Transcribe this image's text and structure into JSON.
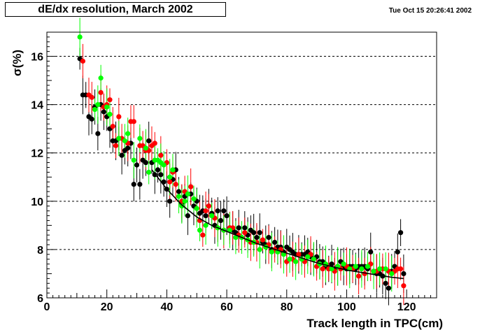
{
  "header": {
    "title": "dE/dx resolution, March 2002",
    "timestamp": "Tue Oct 15 20:26:41 2002"
  },
  "chart_data": {
    "type": "scatter",
    "title": "dE/dx resolution, March 2002",
    "xlabel": "Track length in TPC(cm)",
    "ylabel": "σ(%)",
    "xlim": [
      0,
      130
    ],
    "ylim": [
      6,
      17
    ],
    "x_ticks": [
      0,
      20,
      40,
      60,
      80,
      100,
      120
    ],
    "y_ticks": [
      6,
      8,
      10,
      12,
      14,
      16
    ],
    "grid": "horizontal dashed at y ticks",
    "series": [
      {
        "color": "#000000",
        "points": [
          [
            11,
            15.9
          ],
          [
            12,
            14.4
          ],
          [
            13,
            14.4
          ],
          [
            14,
            13.5
          ],
          [
            15,
            13.4
          ],
          [
            16,
            13.9
          ],
          [
            17,
            12.8
          ],
          [
            18,
            14.0
          ],
          [
            19,
            13.7
          ],
          [
            20,
            13.5
          ],
          [
            21,
            13.0
          ],
          [
            22,
            12.5
          ],
          [
            23,
            12.5
          ],
          [
            24,
            12.6
          ],
          [
            25,
            11.9
          ],
          [
            26,
            12.1
          ],
          [
            27,
            12.2
          ],
          [
            28,
            12.4
          ],
          [
            29,
            10.7
          ],
          [
            30,
            11.5
          ],
          [
            31,
            10.7
          ],
          [
            32,
            11.7
          ],
          [
            33,
            11.6
          ],
          [
            34,
            12.5
          ],
          [
            35,
            11.6
          ],
          [
            36,
            11.1
          ],
          [
            37,
            11.3
          ],
          [
            38,
            11.1
          ],
          [
            39,
            10.8
          ],
          [
            40,
            10.5
          ],
          [
            41,
            10.0
          ],
          [
            42,
            10.9
          ],
          [
            43,
            11.3
          ],
          [
            44,
            10.4
          ],
          [
            45,
            9.9
          ],
          [
            46,
            10.2
          ],
          [
            47,
            9.4
          ],
          [
            48,
            10.3
          ],
          [
            49,
            9.8
          ],
          [
            50,
            10.0
          ],
          [
            51,
            9.5
          ],
          [
            52,
            9.6
          ],
          [
            53,
            9.4
          ],
          [
            54,
            9.8
          ],
          [
            55,
            9.5
          ],
          [
            56,
            9.0
          ],
          [
            57,
            9.6
          ],
          [
            58,
            9.2
          ],
          [
            59,
            9.6
          ],
          [
            60,
            9.4
          ],
          [
            61,
            8.9
          ],
          [
            62,
            8.8
          ],
          [
            63,
            8.7
          ],
          [
            64,
            8.9
          ],
          [
            65,
            8.5
          ],
          [
            66,
            8.9
          ],
          [
            67,
            8.6
          ],
          [
            68,
            8.8
          ],
          [
            69,
            8.7
          ],
          [
            70,
            8.5
          ],
          [
            71,
            8.7
          ],
          [
            72,
            8.3
          ],
          [
            73,
            8.2
          ],
          [
            74,
            8.5
          ],
          [
            75,
            8.0
          ],
          [
            76,
            8.3
          ],
          [
            77,
            8.1
          ],
          [
            78,
            8.1
          ],
          [
            79,
            7.9
          ],
          [
            80,
            8.1
          ],
          [
            81,
            8.0
          ],
          [
            82,
            7.9
          ],
          [
            83,
            7.8
          ],
          [
            84,
            7.8
          ],
          [
            85,
            7.8
          ],
          [
            86,
            7.8
          ],
          [
            87,
            7.9
          ],
          [
            88,
            7.7
          ],
          [
            89,
            7.6
          ],
          [
            90,
            7.7
          ],
          [
            91,
            7.5
          ],
          [
            92,
            7.5
          ],
          [
            93,
            7.3
          ],
          [
            94,
            7.2
          ],
          [
            95,
            7.4
          ],
          [
            96,
            7.2
          ],
          [
            97,
            7.3
          ],
          [
            98,
            7.5
          ],
          [
            99,
            7.3
          ],
          [
            100,
            7.2
          ],
          [
            101,
            7.3
          ],
          [
            102,
            7.3
          ],
          [
            103,
            7.2
          ],
          [
            104,
            7.3
          ],
          [
            105,
            7.3
          ],
          [
            106,
            7.3
          ],
          [
            107,
            7.2
          ],
          [
            108,
            7.9
          ],
          [
            109,
            7.1
          ],
          [
            110,
            7.0
          ],
          [
            111,
            7.0
          ],
          [
            112,
            6.9
          ],
          [
            113,
            6.6
          ],
          [
            114,
            6.4
          ],
          [
            115,
            7.1
          ],
          [
            116,
            7.3
          ],
          [
            117,
            7.9
          ],
          [
            118,
            8.7
          ],
          [
            119,
            7.0
          ]
        ]
      },
      {
        "color": "#ff0000",
        "points": [
          [
            12,
            15.8
          ],
          [
            14,
            14.4
          ],
          [
            15,
            14.3
          ],
          [
            18,
            14.5
          ],
          [
            19,
            13.9
          ],
          [
            20,
            14.0
          ],
          [
            21,
            14.2
          ],
          [
            22,
            13.1
          ],
          [
            23,
            12.3
          ],
          [
            24,
            13.5
          ],
          [
            25,
            12.6
          ],
          [
            27,
            12.4
          ],
          [
            28,
            13.3
          ],
          [
            29,
            13.3
          ],
          [
            31,
            12.3
          ],
          [
            32,
            12.3
          ],
          [
            33,
            12.1
          ],
          [
            34,
            12.1
          ],
          [
            35,
            12.3
          ],
          [
            36,
            12.4
          ],
          [
            38,
            11.9
          ],
          [
            40,
            11.6
          ],
          [
            41,
            10.8
          ],
          [
            42,
            11.2
          ],
          [
            43,
            10.7
          ],
          [
            45,
            10.0
          ],
          [
            46,
            10.4
          ],
          [
            48,
            10.6
          ],
          [
            50,
            9.7
          ],
          [
            51,
            9.2
          ],
          [
            52,
            8.6
          ],
          [
            53,
            9.6
          ],
          [
            54,
            9.8
          ],
          [
            56,
            9.3
          ],
          [
            57,
            8.9
          ],
          [
            59,
            8.8
          ],
          [
            61,
            8.9
          ],
          [
            62,
            8.9
          ],
          [
            64,
            8.6
          ],
          [
            66,
            8.7
          ],
          [
            68,
            8.3
          ],
          [
            69,
            8.3
          ],
          [
            70,
            8.3
          ],
          [
            72,
            8.4
          ],
          [
            74,
            8.2
          ],
          [
            76,
            8.0
          ],
          [
            78,
            8.0
          ],
          [
            80,
            7.5
          ],
          [
            82,
            7.6
          ],
          [
            84,
            7.8
          ],
          [
            86,
            7.5
          ],
          [
            88,
            7.8
          ],
          [
            90,
            7.3
          ],
          [
            92,
            7.2
          ],
          [
            94,
            7.2
          ],
          [
            96,
            7.1
          ],
          [
            98,
            7.2
          ],
          [
            100,
            7.3
          ],
          [
            102,
            7.2
          ],
          [
            104,
            6.9
          ],
          [
            106,
            7.0
          ],
          [
            108,
            7.4
          ],
          [
            110,
            7.1
          ],
          [
            112,
            7.2
          ],
          [
            114,
            7.1
          ],
          [
            116,
            7.1
          ],
          [
            117,
            7.2
          ],
          [
            118,
            7.2
          ],
          [
            119,
            6.5
          ]
        ]
      },
      {
        "color": "#00ff00",
        "points": [
          [
            11,
            16.8
          ],
          [
            16,
            13.8
          ],
          [
            17,
            14.0
          ],
          [
            18,
            15.1
          ],
          [
            20,
            13.9
          ],
          [
            21,
            13.6
          ],
          [
            24,
            12.6
          ],
          [
            26,
            12.5
          ],
          [
            27,
            12.8
          ],
          [
            29,
            11.7
          ],
          [
            31,
            12.6
          ],
          [
            33,
            12.2
          ],
          [
            34,
            11.2
          ],
          [
            36,
            11.7
          ],
          [
            37,
            11.7
          ],
          [
            38,
            11.6
          ],
          [
            39,
            11.5
          ],
          [
            41,
            11.0
          ],
          [
            42,
            11.3
          ],
          [
            44,
            10.2
          ],
          [
            45,
            9.8
          ],
          [
            46,
            10.0
          ],
          [
            47,
            10.3
          ],
          [
            49,
            10.1
          ],
          [
            50,
            9.7
          ],
          [
            51,
            8.8
          ],
          [
            53,
            9.0
          ],
          [
            55,
            9.4
          ],
          [
            57,
            8.9
          ],
          [
            59,
            8.8
          ],
          [
            61,
            8.8
          ],
          [
            63,
            8.5
          ],
          [
            65,
            8.5
          ],
          [
            67,
            8.4
          ],
          [
            69,
            8.3
          ],
          [
            71,
            8.0
          ],
          [
            73,
            8.1
          ],
          [
            75,
            7.9
          ],
          [
            77,
            7.9
          ],
          [
            79,
            7.8
          ],
          [
            81,
            7.6
          ],
          [
            83,
            7.5
          ],
          [
            85,
            7.6
          ],
          [
            87,
            7.7
          ],
          [
            89,
            7.6
          ],
          [
            91,
            7.4
          ],
          [
            93,
            7.4
          ],
          [
            95,
            7.2
          ],
          [
            97,
            7.3
          ],
          [
            99,
            7.4
          ],
          [
            101,
            7.2
          ],
          [
            103,
            7.3
          ],
          [
            105,
            7.2
          ],
          [
            107,
            7.3
          ],
          [
            109,
            7.1
          ],
          [
            111,
            7.2
          ],
          [
            113,
            7.2
          ],
          [
            115,
            7.0
          ]
        ]
      }
    ],
    "fit": {
      "color": "#000000",
      "points": [
        [
          35,
          11.3
        ],
        [
          40,
          10.5
        ],
        [
          45,
          9.85
        ],
        [
          50,
          9.35
        ],
        [
          55,
          9.0
        ],
        [
          60,
          8.75
        ],
        [
          65,
          8.5
        ],
        [
          70,
          8.25
        ],
        [
          75,
          8.05
        ],
        [
          80,
          7.85
        ],
        [
          85,
          7.65
        ],
        [
          90,
          7.45
        ],
        [
          95,
          7.3
        ],
        [
          100,
          7.15
        ],
        [
          105,
          7.05
        ],
        [
          110,
          6.95
        ],
        [
          115,
          6.85
        ],
        [
          119,
          6.8
        ]
      ]
    }
  }
}
